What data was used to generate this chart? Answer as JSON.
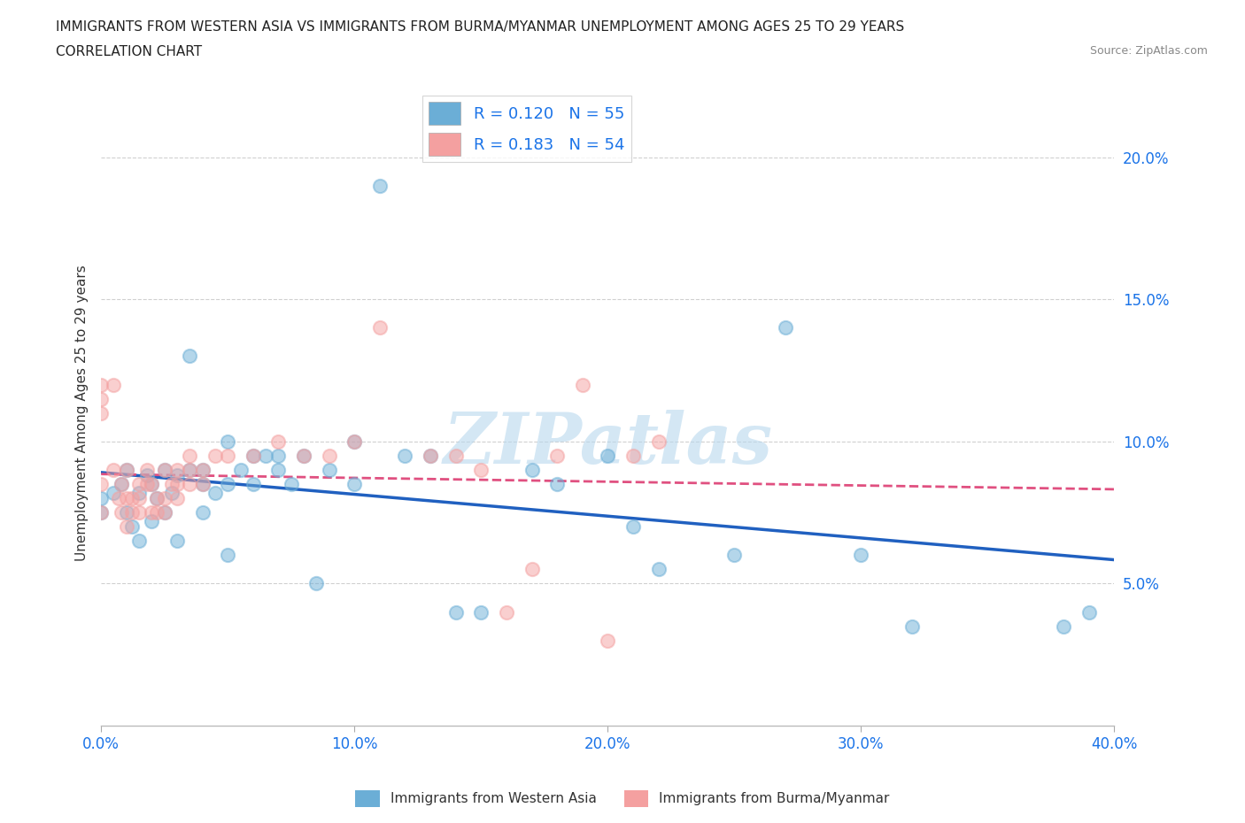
{
  "title_line1": "IMMIGRANTS FROM WESTERN ASIA VS IMMIGRANTS FROM BURMA/MYANMAR UNEMPLOYMENT AMONG AGES 25 TO 29 YEARS",
  "title_line2": "CORRELATION CHART",
  "source": "Source: ZipAtlas.com",
  "ylabel": "Unemployment Among Ages 25 to 29 years",
  "xlim": [
    0.0,
    0.4
  ],
  "ylim": [
    0.0,
    0.22
  ],
  "xticks": [
    0.0,
    0.1,
    0.2,
    0.3,
    0.4
  ],
  "yticks": [
    0.05,
    0.1,
    0.15,
    0.2
  ],
  "xtick_labels": [
    "0.0%",
    "10.0%",
    "20.0%",
    "30.0%",
    "40.0%"
  ],
  "ytick_labels": [
    "5.0%",
    "10.0%",
    "15.0%",
    "20.0%"
  ],
  "color_western_asia": "#6baed6",
  "color_burma": "#f4a0a0",
  "R_western_asia": 0.12,
  "N_western_asia": 55,
  "R_burma": 0.183,
  "N_burma": 54,
  "western_asia_x": [
    0.0,
    0.0,
    0.005,
    0.008,
    0.01,
    0.01,
    0.012,
    0.015,
    0.015,
    0.018,
    0.02,
    0.02,
    0.022,
    0.025,
    0.025,
    0.028,
    0.03,
    0.03,
    0.035,
    0.035,
    0.04,
    0.04,
    0.04,
    0.045,
    0.05,
    0.05,
    0.05,
    0.055,
    0.06,
    0.06,
    0.065,
    0.07,
    0.07,
    0.075,
    0.08,
    0.085,
    0.09,
    0.1,
    0.1,
    0.11,
    0.12,
    0.13,
    0.14,
    0.15,
    0.17,
    0.18,
    0.2,
    0.21,
    0.22,
    0.25,
    0.27,
    0.3,
    0.32,
    0.38,
    0.39
  ],
  "western_asia_y": [
    0.08,
    0.075,
    0.082,
    0.085,
    0.09,
    0.075,
    0.07,
    0.082,
    0.065,
    0.088,
    0.085,
    0.072,
    0.08,
    0.09,
    0.075,
    0.082,
    0.088,
    0.065,
    0.13,
    0.09,
    0.075,
    0.09,
    0.085,
    0.082,
    0.085,
    0.1,
    0.06,
    0.09,
    0.085,
    0.095,
    0.095,
    0.095,
    0.09,
    0.085,
    0.095,
    0.05,
    0.09,
    0.1,
    0.085,
    0.19,
    0.095,
    0.095,
    0.04,
    0.04,
    0.09,
    0.085,
    0.095,
    0.07,
    0.055,
    0.06,
    0.14,
    0.06,
    0.035,
    0.035,
    0.04
  ],
  "burma_x": [
    0.0,
    0.0,
    0.0,
    0.0,
    0.0,
    0.005,
    0.005,
    0.007,
    0.008,
    0.008,
    0.01,
    0.01,
    0.01,
    0.012,
    0.012,
    0.015,
    0.015,
    0.015,
    0.018,
    0.018,
    0.02,
    0.02,
    0.022,
    0.022,
    0.025,
    0.025,
    0.025,
    0.028,
    0.03,
    0.03,
    0.03,
    0.035,
    0.035,
    0.035,
    0.04,
    0.04,
    0.045,
    0.05,
    0.06,
    0.07,
    0.08,
    0.09,
    0.1,
    0.11,
    0.13,
    0.14,
    0.15,
    0.16,
    0.17,
    0.18,
    0.19,
    0.2,
    0.21,
    0.22
  ],
  "burma_y": [
    0.12,
    0.115,
    0.11,
    0.085,
    0.075,
    0.12,
    0.09,
    0.08,
    0.075,
    0.085,
    0.09,
    0.07,
    0.08,
    0.08,
    0.075,
    0.085,
    0.075,
    0.08,
    0.085,
    0.09,
    0.085,
    0.075,
    0.075,
    0.08,
    0.08,
    0.09,
    0.075,
    0.085,
    0.085,
    0.09,
    0.08,
    0.095,
    0.085,
    0.09,
    0.09,
    0.085,
    0.095,
    0.095,
    0.095,
    0.1,
    0.095,
    0.095,
    0.1,
    0.14,
    0.095,
    0.095,
    0.09,
    0.04,
    0.055,
    0.095,
    0.12,
    0.03,
    0.095,
    0.1
  ],
  "watermark": "ZIPatlas",
  "background_color": "#ffffff",
  "grid_color": "#d0d0d0",
  "title_color": "#222222",
  "legend_color": "#1a73e8",
  "tick_color": "#1a73e8"
}
